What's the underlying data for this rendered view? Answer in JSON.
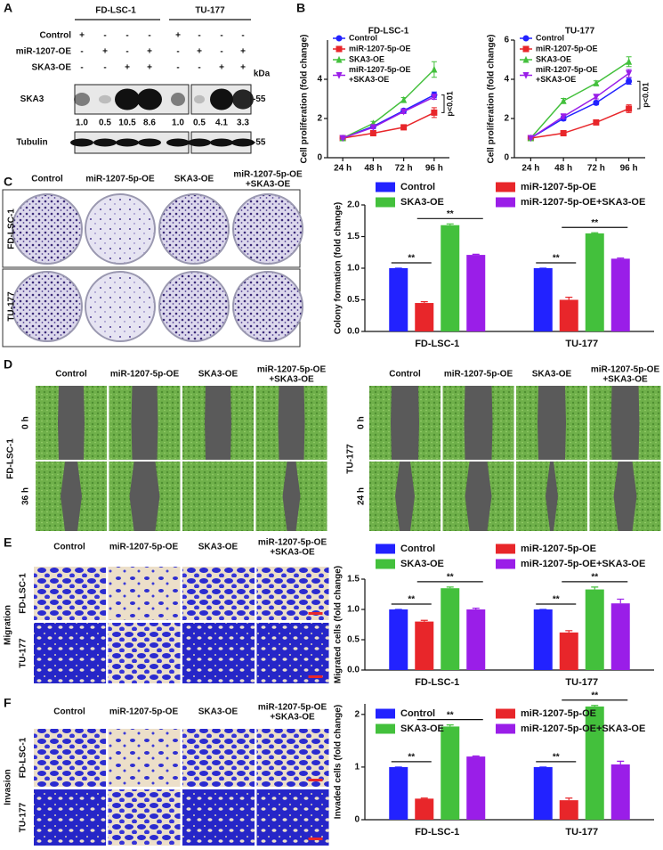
{
  "letters": [
    "A",
    "B",
    "C",
    "D",
    "E",
    "F"
  ],
  "blot": {
    "cell_lines": [
      "FD-LSC-1",
      "TU-177"
    ],
    "conditions": [
      "Control",
      "miR-1207-OE",
      "SKA3-OE"
    ],
    "signs": [
      [
        "+",
        "-",
        "-",
        "-",
        "+",
        "-",
        "-",
        "-"
      ],
      [
        "-",
        "+",
        "-",
        "+",
        "-",
        "+",
        "-",
        "+"
      ],
      [
        "-",
        "-",
        "+",
        "+",
        "-",
        "-",
        "+",
        "+"
      ]
    ],
    "unit": "kDa",
    "proteins": [
      "SKA3",
      "Tubulin"
    ],
    "markers": [
      "-55",
      "-55"
    ],
    "quant": [
      "1.0",
      "0.5",
      "10.5",
      "8.6",
      "1.0",
      "0.5",
      "4.1",
      "3.3"
    ]
  },
  "colony": {
    "headers": [
      "Control",
      "miR-1207-5p-OE",
      "SKA3-OE",
      "miR-1207-5p-OE\n+SKA3-OE"
    ],
    "rows": [
      "FD-LSC-1",
      "TU-177"
    ]
  },
  "wound": [
    {
      "headers": [
        "Control",
        "miR-1207-5p-OE",
        "SKA3-OE",
        "miR-1207-5p-OE\n+SKA3-OE"
      ],
      "cell_line": "FD-LSC-1",
      "times": [
        "0 h",
        "36 h"
      ]
    },
    {
      "headers": [
        "Control",
        "miR-1207-5p-OE",
        "SKA3-OE",
        "miR-1207-5p-OE\n+SKA3-OE"
      ],
      "cell_line": "TU-177",
      "times": [
        "0 h",
        "24 h"
      ]
    }
  ],
  "migration": {
    "side": "Migration",
    "headers": [
      "Control",
      "miR-1207-5p-OE",
      "SKA3-OE",
      "miR-1207-5p-OE\n+SKA3-OE"
    ],
    "rows": [
      "FD-LSC-1",
      "TU-177"
    ]
  },
  "invasion": {
    "side": "Invasion",
    "headers": [
      "Control",
      "miR-1207-5p-OE",
      "SKA3-OE",
      "miR-1207-5p-OE\n+SKA3-OE"
    ],
    "rows": [
      "FD-LSC-1",
      "TU-177"
    ]
  },
  "chart_data": [
    {
      "type": "line",
      "title": "FD-LSC-1",
      "y_label": "Cell proliferation (fold change)",
      "categories": [
        "24 h",
        "48 h",
        "72 h",
        "96 h"
      ],
      "series": [
        {
          "name": "Control",
          "color": "#2222ff",
          "values": [
            1,
            1.6,
            2.4,
            3.2
          ],
          "errors": [
            0.05,
            0.1,
            0.1,
            0.15
          ]
        },
        {
          "name": "miR-1207-5p-OE",
          "color": "#e8262a",
          "values": [
            1,
            1.25,
            1.55,
            2.3
          ],
          "errors": [
            0.05,
            0.06,
            0.08,
            0.25
          ]
        },
        {
          "name": "SKA3-OE",
          "color": "#43c03c",
          "values": [
            1,
            1.75,
            2.95,
            4.5
          ],
          "errors": [
            0.05,
            0.1,
            0.12,
            0.4
          ]
        },
        {
          "name": "miR-1207-5p-OE\n+SKA3-OE",
          "color": "#9a1ee8",
          "values": [
            1,
            1.55,
            2.35,
            3.1
          ],
          "errors": [
            0.05,
            0.08,
            0.1,
            0.12
          ]
        }
      ],
      "ylim": [
        0,
        6
      ],
      "yticks": [
        0,
        2,
        4
      ],
      "legend": "upper left",
      "annotation": "p<0.01"
    },
    {
      "type": "line",
      "title": "TU-177",
      "y_label": "Cell proliferation (fold change)",
      "categories": [
        "24 h",
        "48 h",
        "72 h",
        "96 h"
      ],
      "series": [
        {
          "name": "Control",
          "color": "#2222ff",
          "values": [
            1,
            2.0,
            2.8,
            3.9
          ],
          "errors": [
            0.05,
            0.1,
            0.1,
            0.15
          ]
        },
        {
          "name": "miR-1207-5p-OE",
          "color": "#e8262a",
          "values": [
            1,
            1.25,
            1.8,
            2.5
          ],
          "errors": [
            0.05,
            0.06,
            0.08,
            0.2
          ]
        },
        {
          "name": "SKA3-OE",
          "color": "#43c03c",
          "values": [
            1,
            2.9,
            3.8,
            4.9
          ],
          "errors": [
            0.05,
            0.12,
            0.12,
            0.25
          ]
        },
        {
          "name": "miR-1207-5p-OE\n+SKA3-OE",
          "color": "#9a1ee8",
          "values": [
            1,
            2.1,
            3.1,
            4.3
          ],
          "errors": [
            0.05,
            0.1,
            0.1,
            0.2
          ]
        }
      ],
      "ylim": [
        0,
        6
      ],
      "yticks": [
        0,
        2,
        4,
        6
      ],
      "legend": "upper left",
      "annotation": "p<0.01"
    },
    {
      "type": "bar",
      "y_label": "Colony formation (fold change)",
      "categories": [
        "FD-LSC-1",
        "TU-177"
      ],
      "series": [
        {
          "name": "Control",
          "color": "#2222ff",
          "values": [
            1.0,
            1.0
          ],
          "errors": [
            0.0,
            0.0
          ]
        },
        {
          "name": "miR-1207-5p-OE",
          "color": "#e8262a",
          "values": [
            0.45,
            0.5
          ],
          "errors": [
            0.02,
            0.04
          ]
        },
        {
          "name": "SKA3-OE",
          "color": "#43c03c",
          "values": [
            1.68,
            1.55
          ],
          "errors": [
            0.02,
            0.01
          ]
        },
        {
          "name": "miR-1207-5p-OE+SKA3-OE",
          "color": "#9a1ee8",
          "values": [
            1.21,
            1.15
          ],
          "errors": [
            0.01,
            0.01
          ]
        }
      ],
      "ylim": [
        0,
        2.0
      ],
      "yticks": [
        {
          "value": 0,
          "label": "0.0"
        },
        {
          "value": 0.5,
          "label": "0.5"
        },
        {
          "value": 1,
          "label": "1.0"
        },
        {
          "value": 1.5,
          "label": "1.5"
        },
        {
          "value": 2,
          "label": "2.0"
        }
      ],
      "legend": "top",
      "annotations": [
        "**",
        "**",
        "**",
        "**"
      ]
    },
    {
      "type": "bar",
      "y_label": "Migrated cells (fold change)",
      "categories": [
        "FD-LSC-1",
        "TU-177"
      ],
      "series": [
        {
          "name": "Control",
          "color": "#2222ff",
          "values": [
            1.0,
            1.0
          ],
          "errors": [
            0.0,
            0.0
          ]
        },
        {
          "name": "miR-1207-5p-OE",
          "color": "#e8262a",
          "values": [
            0.8,
            0.62
          ],
          "errors": [
            0.02,
            0.03
          ]
        },
        {
          "name": "SKA3-OE",
          "color": "#43c03c",
          "values": [
            1.35,
            1.33
          ],
          "errors": [
            0.02,
            0.04
          ]
        },
        {
          "name": "miR-1207-5p-OE+SKA3-OE",
          "color": "#9a1ee8",
          "values": [
            1.0,
            1.1
          ],
          "errors": [
            0.02,
            0.07
          ]
        }
      ],
      "ylim": [
        0,
        1.5
      ],
      "yticks": [
        {
          "value": 0,
          "label": "0.0"
        },
        {
          "value": 0.5,
          "label": "0.5"
        },
        {
          "value": 1,
          "label": "1.0"
        },
        {
          "value": 1.5,
          "label": "1.5"
        }
      ],
      "legend": "top",
      "annotations": [
        "**",
        "**",
        "**",
        "**"
      ]
    },
    {
      "type": "bar",
      "y_label": "Invaded cells (fold change)",
      "categories": [
        "FD-LSC-1",
        "TU-177"
      ],
      "series": [
        {
          "name": "Control",
          "color": "#2222ff",
          "values": [
            1.0,
            1.0
          ],
          "errors": [
            0.0,
            0.0
          ]
        },
        {
          "name": "miR-1207-5p-OE",
          "color": "#e8262a",
          "values": [
            0.4,
            0.37
          ],
          "errors": [
            0.01,
            0.04
          ]
        },
        {
          "name": "SKA3-OE",
          "color": "#43c03c",
          "values": [
            1.77,
            2.15
          ],
          "errors": [
            0.03,
            0.02
          ]
        },
        {
          "name": "miR-1207-5p-OE+SKA3-OE",
          "color": "#9a1ee8",
          "values": [
            1.2,
            1.05
          ],
          "errors": [
            0.01,
            0.06
          ]
        }
      ],
      "ylim": [
        0,
        2.2
      ],
      "yticks": [
        0,
        1,
        2
      ],
      "legend": "top",
      "annotations": [
        "**",
        "**",
        "**",
        "**"
      ]
    }
  ]
}
